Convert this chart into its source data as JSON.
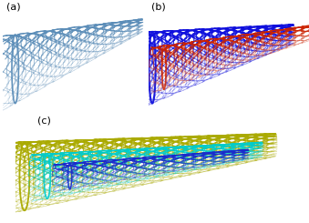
{
  "background_color": "#ffffff",
  "labels": [
    "(a)",
    "(b)",
    "(c)"
  ],
  "swcnt_color": "#5b8db8",
  "dwcnt_outer_color": "#1010dd",
  "dwcnt_inner_color": "#cc2200",
  "mwcnt_inner_color": "#1a2acc",
  "mwcnt_mid_color": "#00cccc",
  "mwcnt_outer_color": "#aaaa00",
  "figsize": [
    3.39,
    2.45
  ],
  "dpi": 100
}
